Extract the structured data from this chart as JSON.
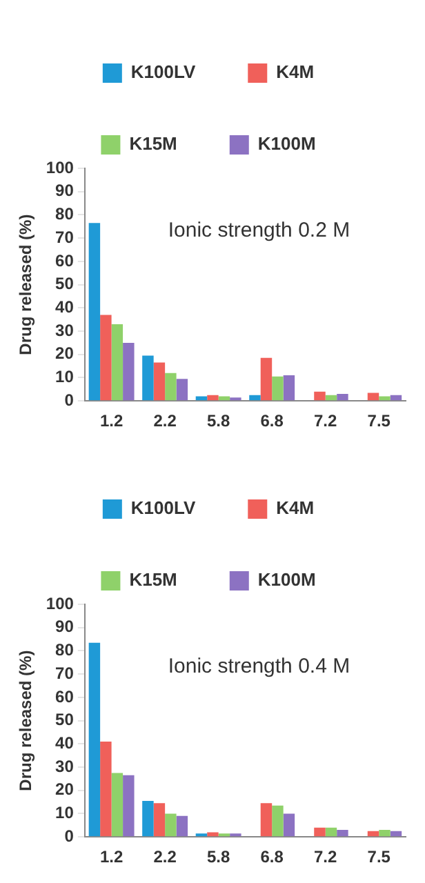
{
  "chart_data": [
    {
      "type": "bar",
      "categories": [
        "1.2",
        "2.2",
        "5.8",
        "6.8",
        "7.2",
        "7.5"
      ],
      "ylabel": "Drug released (%)",
      "annotations": [
        "Ionic strength 0.2 M"
      ],
      "ylim": [
        0,
        100
      ],
      "yticks": [
        0,
        10,
        20,
        30,
        40,
        50,
        60,
        70,
        80,
        90,
        100
      ],
      "grid": false,
      "legend": "top",
      "series": [
        {
          "name": "K100LV",
          "color": "#1f9ad6",
          "values": [
            76.5,
            19.5,
            2,
            2.5,
            null,
            null
          ]
        },
        {
          "name": "K4M",
          "color": "#f0605a",
          "values": [
            37,
            16.5,
            2.5,
            18.5,
            4,
            3.5
          ]
        },
        {
          "name": "K15M",
          "color": "#8fd16a",
          "values": [
            33,
            12,
            2,
            10.5,
            2.5,
            2
          ]
        },
        {
          "name": "K100M",
          "color": "#8c72c2",
          "values": [
            25,
            9.5,
            1.5,
            11,
            3,
            2.5
          ]
        }
      ]
    },
    {
      "type": "bar",
      "categories": [
        "1.2",
        "2.2",
        "5.8",
        "6.8",
        "7.2",
        "7.5"
      ],
      "ylabel": "Drug released (%)",
      "annotations": [
        "Ionic strength 0.4 M"
      ],
      "ylim": [
        0,
        100
      ],
      "yticks": [
        0,
        10,
        20,
        30,
        40,
        50,
        60,
        70,
        80,
        90,
        100
      ],
      "grid": false,
      "legend": "top",
      "series": [
        {
          "name": "K100LV",
          "color": "#1f9ad6",
          "values": [
            83.5,
            15.5,
            1.5,
            null,
            null,
            null
          ]
        },
        {
          "name": "K4M",
          "color": "#f0605a",
          "values": [
            41,
            14.5,
            2,
            14.5,
            4,
            2.5
          ]
        },
        {
          "name": "K15M",
          "color": "#8fd16a",
          "values": [
            27.5,
            10,
            1.5,
            13.5,
            4,
            3
          ]
        },
        {
          "name": "K100M",
          "color": "#8c72c2",
          "values": [
            26.5,
            9,
            1.5,
            10,
            3,
            2.5
          ]
        }
      ]
    }
  ]
}
